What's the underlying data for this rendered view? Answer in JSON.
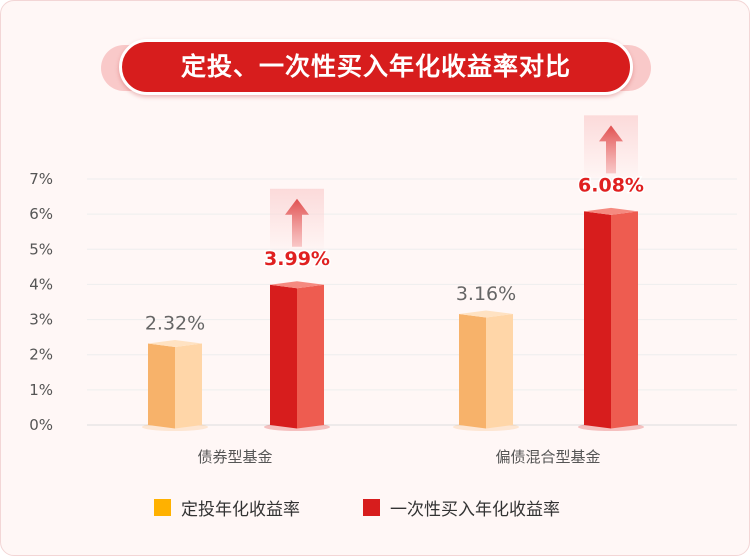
{
  "title": "定投、一次性买入年化收益率对比",
  "colors": {
    "dingtou": "#f7b26a",
    "dingtou_light": "#ffd6a8",
    "lumpsum": "#d71d1d",
    "lumpsum_light": "#ee5c50",
    "value_text_plain": "#666666",
    "value_text_highlight": "#e02020"
  },
  "chart_data": {
    "type": "bar",
    "categories": [
      "债券型基金",
      "偏债混合型基金"
    ],
    "series": [
      {
        "name": "定投年化收益率",
        "values": [
          2.32,
          3.16
        ]
      },
      {
        "name": "一次性买入年化收益率",
        "values": [
          3.99,
          6.08
        ]
      }
    ],
    "data_labels": [
      [
        "2.32%",
        "3.16%"
      ],
      [
        "3.99%",
        "6.08%"
      ]
    ],
    "ylim": [
      0,
      7
    ],
    "yticks": [
      "0%",
      "1%",
      "2%",
      "3%",
      "4%",
      "5%",
      "6%",
      "7%"
    ],
    "grid": true,
    "legend_position": "bottom",
    "title": "定投、一次性买入年化收益率对比"
  },
  "legend": [
    {
      "label": "定投年化收益率",
      "color": "#ffb100"
    },
    {
      "label": "一次性买入年化收益率",
      "color": "#d71d1d"
    }
  ]
}
